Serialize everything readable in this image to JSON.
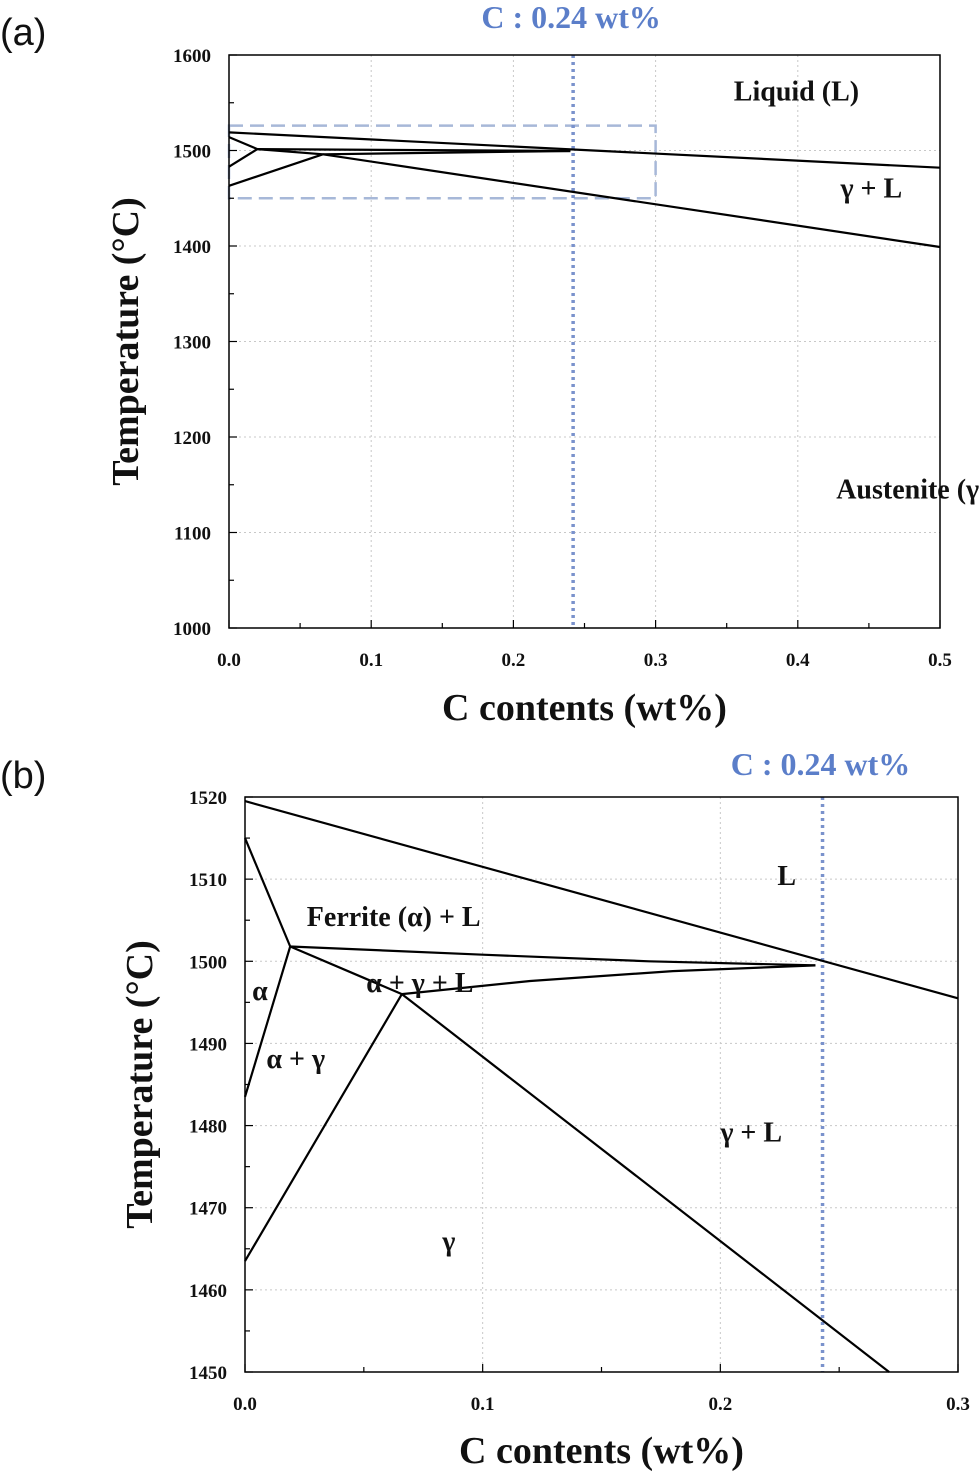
{
  "chart_data": [
    {
      "id": "a",
      "panel_label": "(a)",
      "type": "line",
      "xlabel": "C contents (wt%)",
      "ylabel": "Temperature (°C)",
      "xlim": [
        0.0,
        0.5
      ],
      "ylim": [
        1000,
        1600
      ],
      "xticks": [
        0.0,
        0.1,
        0.2,
        0.3,
        0.4,
        0.5
      ],
      "yticks": [
        1000,
        1100,
        1200,
        1300,
        1400,
        1500,
        1600
      ],
      "xtick_labels": [
        "0.0",
        "0.1",
        "0.2",
        "0.3",
        "0.4",
        "0.5"
      ],
      "ytick_labels": [
        "1000",
        "1100",
        "1200",
        "1300",
        "1400",
        "1500",
        "1600"
      ],
      "xminor_step": 0.05,
      "yminor_step": 50,
      "grid": true,
      "lines": [
        {
          "x": [
            0.0,
            0.5
          ],
          "y": [
            1519,
            1482
          ]
        },
        {
          "x": [
            0.0,
            0.02
          ],
          "y": [
            1514,
            1501.5
          ]
        },
        {
          "x": [
            0.02,
            0.24
          ],
          "y": [
            1501.5,
            1499.5
          ]
        },
        {
          "x": [
            0.02,
            0.066
          ],
          "y": [
            1501.5,
            1496
          ]
        },
        {
          "x": [
            0.066,
            0.24
          ],
          "y": [
            1496,
            1499.5
          ]
        },
        {
          "x": [
            0.0,
            0.02
          ],
          "y": [
            1483,
            1501.5
          ]
        },
        {
          "x": [
            0.0,
            0.066
          ],
          "y": [
            1463,
            1496
          ]
        },
        {
          "x": [
            0.066,
            0.5
          ],
          "y": [
            1496,
            1399
          ]
        }
      ],
      "highlight_box": {
        "x": [
          0.0,
          0.3
        ],
        "y": [
          1450,
          1526
        ],
        "color": "#a7b8d8"
      },
      "vline": {
        "x": 0.242,
        "color": "#7a92cc"
      },
      "annotation": {
        "text": "C : 0.24 wt%",
        "color": "#5b7ec9"
      },
      "regions": [
        {
          "text": "Liquid (L)",
          "x": 0.355,
          "y": 1563
        },
        {
          "text": "γ + L",
          "x": 0.43,
          "y": 1461
        },
        {
          "text": "Austenite (γ)",
          "x": 0.427,
          "y": 1146
        }
      ]
    },
    {
      "id": "b",
      "panel_label": "(b)",
      "type": "line",
      "xlabel": "C contents (wt%)",
      "ylabel": "Temperature (°C)",
      "xlim": [
        0.0,
        0.3
      ],
      "ylim": [
        1450,
        1520
      ],
      "xticks": [
        0.0,
        0.1,
        0.2,
        0.3
      ],
      "yticks": [
        1450,
        1460,
        1470,
        1480,
        1490,
        1500,
        1510,
        1520
      ],
      "xtick_labels": [
        "0.0",
        "0.1",
        "0.2",
        "0.3"
      ],
      "ytick_labels": [
        "1450",
        "1460",
        "1470",
        "1480",
        "1490",
        "1500",
        "1510",
        "1520"
      ],
      "xminor_step": 0.05,
      "yminor_step": 5,
      "grid": true,
      "lines": [
        {
          "x": [
            0.0,
            0.3
          ],
          "y": [
            1519.5,
            1495.5
          ]
        },
        {
          "x": [
            0.0,
            0.019
          ],
          "y": [
            1515,
            1501.8
          ]
        },
        {
          "x": [
            0.019,
            0.1,
            0.17,
            0.24
          ],
          "y": [
            1501.8,
            1500.8,
            1500.0,
            1499.5
          ]
        },
        {
          "x": [
            0.019,
            0.066
          ],
          "y": [
            1501.8,
            1496.0
          ]
        },
        {
          "x": [
            0.066,
            0.12,
            0.18,
            0.24
          ],
          "y": [
            1496.0,
            1497.6,
            1498.8,
            1499.5
          ]
        },
        {
          "x": [
            0.0,
            0.019
          ],
          "y": [
            1483.5,
            1501.8
          ]
        },
        {
          "x": [
            0.0,
            0.066
          ],
          "y": [
            1463.5,
            1496.0
          ]
        },
        {
          "x": [
            0.066,
            0.271
          ],
          "y": [
            1496.0,
            1450.0
          ]
        }
      ],
      "vline": {
        "x": 0.243,
        "color": "#7a92cc"
      },
      "annotation": {
        "text": "C : 0.24 wt%",
        "color": "#5b7ec9"
      },
      "regions": [
        {
          "text": "L",
          "x": 0.224,
          "y": 1510.5
        },
        {
          "text": "Ferrite (α) + L",
          "x": 0.026,
          "y": 1505.5
        },
        {
          "text": "α + γ + L",
          "x": 0.051,
          "y": 1497.5
        },
        {
          "text": "α",
          "x": 0.003,
          "y": 1496.5
        },
        {
          "text": "α + γ",
          "x": 0.009,
          "y": 1488.2
        },
        {
          "text": "γ + L",
          "x": 0.2,
          "y": 1479.3
        },
        {
          "text": "γ",
          "x": 0.083,
          "y": 1466
        }
      ]
    }
  ]
}
